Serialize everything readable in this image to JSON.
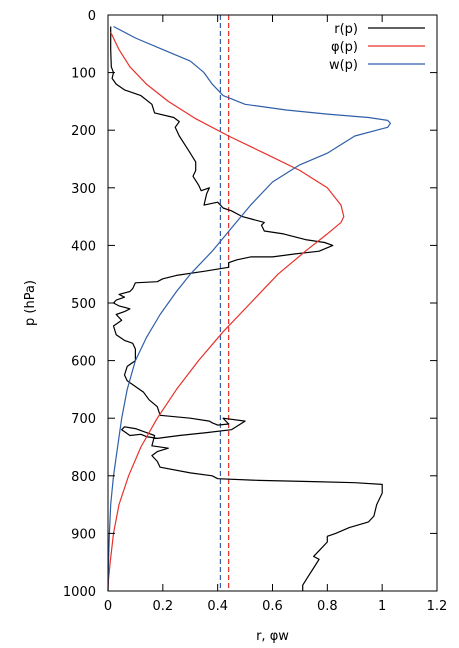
{
  "chart_data": {
    "type": "line",
    "xlabel": "r, φw",
    "ylabel": "p (hPa)",
    "xlim": [
      0,
      1.2
    ],
    "ylim": [
      1000,
      0
    ],
    "y_inverted": true,
    "xticks": [
      "0",
      "0.2",
      "0.4",
      "0.6",
      "0.8",
      "1",
      "1.2"
    ],
    "yticks": [
      "0",
      "100",
      "200",
      "300",
      "400",
      "500",
      "600",
      "700",
      "800",
      "900",
      "1000"
    ],
    "legend_position": "top-right",
    "grid": false,
    "series": [
      {
        "name": "r(p)",
        "color": "#000000",
        "points": [
          [
            0.01,
            20
          ],
          [
            0.01,
            60
          ],
          [
            0.012,
            90
          ],
          [
            0.02,
            100
          ],
          [
            0.015,
            110
          ],
          [
            0.03,
            120
          ],
          [
            0.06,
            130
          ],
          [
            0.12,
            140
          ],
          [
            0.16,
            155
          ],
          [
            0.17,
            170
          ],
          [
            0.24,
            178
          ],
          [
            0.26,
            185
          ],
          [
            0.245,
            195
          ],
          [
            0.26,
            210
          ],
          [
            0.28,
            225
          ],
          [
            0.3,
            240
          ],
          [
            0.32,
            255
          ],
          [
            0.32,
            270
          ],
          [
            0.31,
            280
          ],
          [
            0.33,
            295
          ],
          [
            0.34,
            305
          ],
          [
            0.37,
            300
          ],
          [
            0.36,
            310
          ],
          [
            0.35,
            330
          ],
          [
            0.4,
            325
          ],
          [
            0.42,
            335
          ],
          [
            0.45,
            340
          ],
          [
            0.49,
            350
          ],
          [
            0.53,
            355
          ],
          [
            0.57,
            360
          ],
          [
            0.56,
            365
          ],
          [
            0.57,
            375
          ],
          [
            0.64,
            380
          ],
          [
            0.72,
            390
          ],
          [
            0.79,
            395
          ],
          [
            0.82,
            400
          ],
          [
            0.77,
            410
          ],
          [
            0.68,
            415
          ],
          [
            0.6,
            420
          ],
          [
            0.52,
            420
          ],
          [
            0.47,
            425
          ],
          [
            0.44,
            430
          ],
          [
            0.44,
            438
          ],
          [
            0.35,
            445
          ],
          [
            0.25,
            452
          ],
          [
            0.2,
            458
          ],
          [
            0.18,
            463
          ],
          [
            0.1,
            465
          ],
          [
            0.09,
            475
          ],
          [
            0.08,
            480
          ],
          [
            0.04,
            485
          ],
          [
            0.06,
            490
          ],
          [
            0.03,
            495
          ],
          [
            0.02,
            500
          ],
          [
            0.04,
            505
          ],
          [
            0.08,
            510
          ],
          [
            0.06,
            515
          ],
          [
            0.03,
            520
          ],
          [
            0.05,
            530
          ],
          [
            0.02,
            540
          ],
          [
            0.03,
            555
          ],
          [
            0.06,
            565
          ],
          [
            0.09,
            570
          ],
          [
            0.1,
            580
          ],
          [
            0.1,
            600
          ],
          [
            0.07,
            610
          ],
          [
            0.06,
            625
          ],
          [
            0.07,
            635
          ],
          [
            0.1,
            645
          ],
          [
            0.13,
            655
          ],
          [
            0.15,
            668
          ],
          [
            0.18,
            680
          ],
          [
            0.19,
            695
          ],
          [
            0.3,
            700
          ],
          [
            0.37,
            705
          ],
          [
            0.38,
            708
          ],
          [
            0.4,
            712
          ],
          [
            0.44,
            710
          ],
          [
            0.42,
            700
          ],
          [
            0.5,
            705
          ],
          [
            0.45,
            720
          ],
          [
            0.36,
            725
          ],
          [
            0.26,
            730
          ],
          [
            0.18,
            735
          ],
          [
            0.14,
            732
          ],
          [
            0.12,
            728
          ],
          [
            0.08,
            730
          ],
          [
            0.05,
            720
          ],
          [
            0.06,
            715
          ],
          [
            0.1,
            718
          ],
          [
            0.14,
            725
          ],
          [
            0.17,
            730
          ],
          [
            0.16,
            748
          ],
          [
            0.22,
            752
          ],
          [
            0.18,
            758
          ],
          [
            0.16,
            765
          ],
          [
            0.18,
            775
          ],
          [
            0.19,
            785
          ],
          [
            0.3,
            795
          ],
          [
            0.38,
            800
          ],
          [
            0.4,
            805
          ],
          [
            0.55,
            808
          ],
          [
            0.75,
            810
          ],
          [
            0.9,
            812
          ],
          [
            1.0,
            815
          ],
          [
            1.0,
            830
          ],
          [
            0.98,
            850
          ],
          [
            0.97,
            870
          ],
          [
            0.95,
            880
          ],
          [
            0.88,
            890
          ],
          [
            0.83,
            900
          ],
          [
            0.8,
            905
          ],
          [
            0.8,
            915
          ],
          [
            0.77,
            930
          ],
          [
            0.75,
            940
          ],
          [
            0.77,
            945
          ],
          [
            0.75,
            960
          ],
          [
            0.73,
            975
          ],
          [
            0.71,
            990
          ],
          [
            0.71,
            1000
          ]
        ]
      },
      {
        "name": "φ(p)",
        "color": "#e8312a",
        "points": [
          [
            0.0,
            1000
          ],
          [
            0.002,
            980
          ],
          [
            0.008,
            950
          ],
          [
            0.02,
            900
          ],
          [
            0.04,
            850
          ],
          [
            0.075,
            800
          ],
          [
            0.12,
            750
          ],
          [
            0.18,
            700
          ],
          [
            0.25,
            650
          ],
          [
            0.33,
            600
          ],
          [
            0.42,
            550
          ],
          [
            0.52,
            500
          ],
          [
            0.62,
            450
          ],
          [
            0.72,
            410
          ],
          [
            0.8,
            380
          ],
          [
            0.85,
            360
          ],
          [
            0.86,
            350
          ],
          [
            0.85,
            330
          ],
          [
            0.8,
            300
          ],
          [
            0.7,
            270
          ],
          [
            0.57,
            240
          ],
          [
            0.44,
            210
          ],
          [
            0.32,
            180
          ],
          [
            0.22,
            150
          ],
          [
            0.14,
            120
          ],
          [
            0.08,
            90
          ],
          [
            0.04,
            60
          ],
          [
            0.01,
            30
          ]
        ]
      },
      {
        "name": "w(p)",
        "color": "#2f5fa8",
        "points": [
          [
            0.02,
            20
          ],
          [
            0.1,
            40
          ],
          [
            0.2,
            60
          ],
          [
            0.3,
            80
          ],
          [
            0.35,
            100
          ],
          [
            0.38,
            120
          ],
          [
            0.42,
            140
          ],
          [
            0.5,
            155
          ],
          [
            0.65,
            165
          ],
          [
            0.8,
            172
          ],
          [
            0.95,
            178
          ],
          [
            1.02,
            183
          ],
          [
            1.03,
            188
          ],
          [
            1.02,
            195
          ],
          [
            0.98,
            200
          ],
          [
            0.9,
            210
          ],
          [
            0.85,
            225
          ],
          [
            0.8,
            240
          ],
          [
            0.7,
            260
          ],
          [
            0.6,
            290
          ],
          [
            0.52,
            330
          ],
          [
            0.45,
            370
          ],
          [
            0.38,
            410
          ],
          [
            0.3,
            450
          ],
          [
            0.25,
            480
          ],
          [
            0.19,
            520
          ],
          [
            0.14,
            560
          ],
          [
            0.1,
            600
          ],
          [
            0.07,
            650
          ],
          [
            0.05,
            700
          ],
          [
            0.035,
            750
          ],
          [
            0.02,
            800
          ],
          [
            0.01,
            850
          ],
          [
            0.005,
            900
          ],
          [
            0.002,
            950
          ],
          [
            0.0,
            1000
          ]
        ]
      }
    ],
    "vertical_lines": [
      {
        "x": 0.41,
        "color": "#2f5fa8",
        "style": "dashed"
      },
      {
        "x": 0.44,
        "color": "#e8312a",
        "style": "dashed"
      }
    ]
  }
}
